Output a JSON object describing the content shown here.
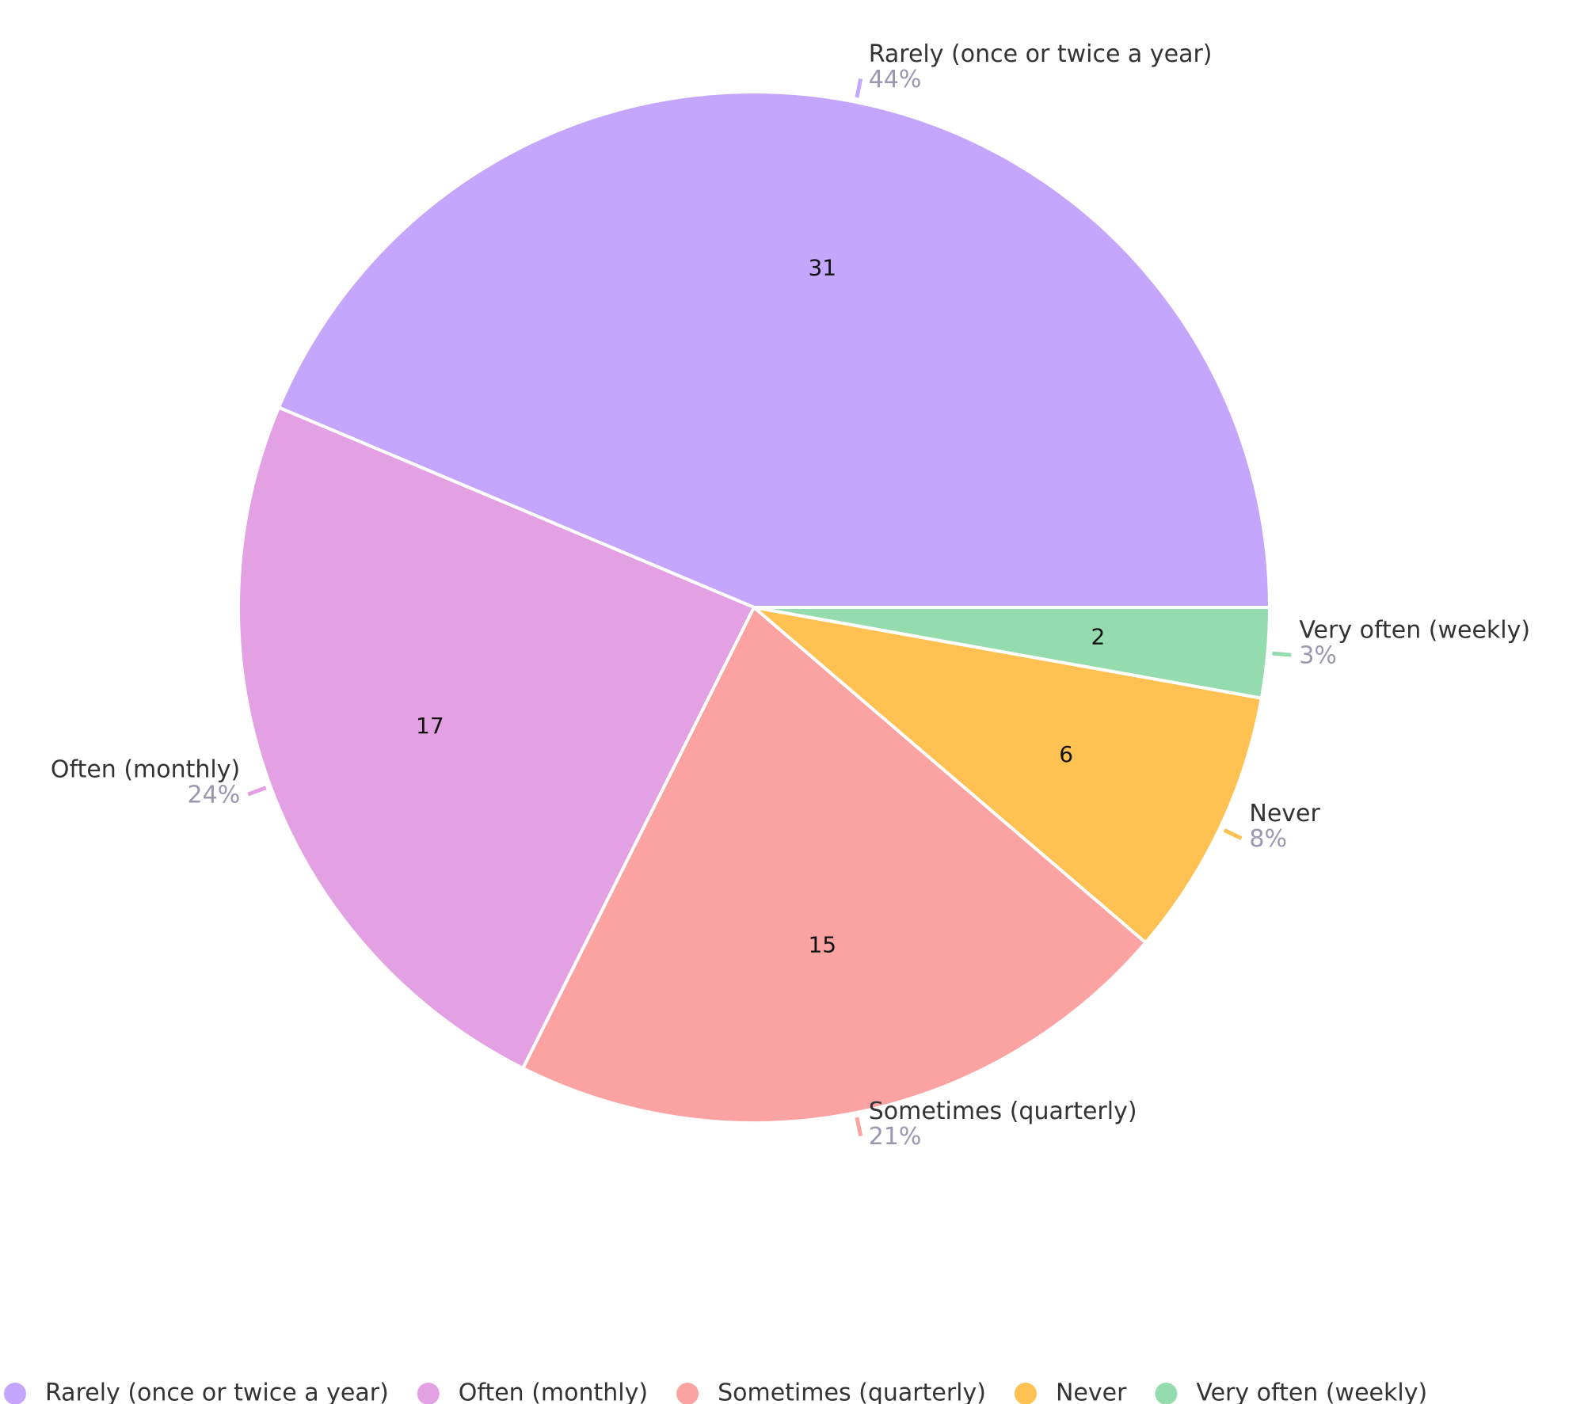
{
  "chart_data": {
    "type": "pie",
    "categories": [
      "Rarely (once or twice a year)",
      "Often (monthly)",
      "Sometimes (quarterly)",
      "Never",
      "Very often (weekly)"
    ],
    "values": [
      31,
      17,
      15,
      6,
      2
    ],
    "value_labels": [
      "44%",
      "24%",
      "21%",
      "8%",
      "3%"
    ],
    "colors": [
      "#c4a7fc",
      "#e3a0e3",
      "#fba3a3",
      "#fec152",
      "#94dbae"
    ],
    "legend": "bottom"
  }
}
